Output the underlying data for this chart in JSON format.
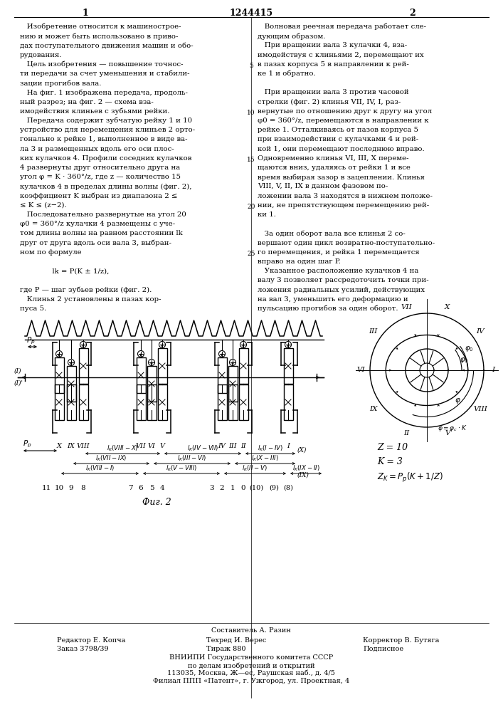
{
  "patent_number": "1244415",
  "page_left": "1",
  "page_right": "2",
  "bg_color": "#ffffff",
  "col1_text": [
    "   Изобретение относится к машинострое-",
    "нию и может быть использовано в приво-",
    "дах поступательного движения машин и обо-",
    "рудования.",
    "   Цель изобретения — повышение точнос-",
    "ти передачи за счет уменьшения и стабили-",
    "зации прогибов вала.",
    "   На фиг. 1 изображена передача, продоль-",
    "ный разрез; на фиг. 2 — схема вза-",
    "имодействия клиньев с зубьями рейки.",
    "   Передача содержит зубчатую рейку 1 и 10",
    "устройство для перемещения клиньев 2 орто-",
    "гонально к рейке 1, выполненное в виде ва-",
    "ла 3 и размещенных вдоль его оси плос-",
    "ких кулачков 4. Профили соседних кулачков",
    "4 развернуты друг относительно друга на",
    "угол φ = K · 360°/z, где z — количество 15",
    "кулачков 4 в пределах длины волны (фиг. 2),",
    "коэффициент K выбран из диапазона 2 ≤",
    "≤ K ≤ (z−2).",
    "   Последовательно развернутые на угол 20",
    "φ0 = 360°/z кулачки 4 размещены с уче-",
    "том длины волны на равном расстоянии lk",
    "друг от друга вдоль оси вала 3, выбран-",
    "ном по формуле",
    "",
    "              lk = P(K ± 1/z),",
    "",
    "где P — шаг зубьев рейки (фиг. 2).",
    "   Клинья 2 установлены в пазах кор-",
    "пуса 5."
  ],
  "col2_text": [
    "   Волновая реечная передача работает сле-",
    "дующим образом.",
    "   При вращении вала 3 кулачки 4, вза-",
    "имодействуя с клиньями 2, перемещают их",
    "в пазах корпуса 5 в направлении к рей-",
    "ке 1 и обратно.",
    "",
    "   При вращении вала 3 против часовой",
    "стрелки (фиг. 2) клинья VII, IV, I, раз-",
    "вернутые по отношению друг к другу на угол",
    "φ0 = 360°/z, перемещаются в направлении к",
    "рейке 1. Отталкиваясь от пазов корпуса 5",
    "при взаимодействии с кулачками 4 и рей-",
    "кой 1, они перемещают последнюю вправо.",
    "Одновременно клинья VI, III, X переме-",
    "щаются вниз, удаляясь от рейки 1 и все",
    "время выбирая зазор в зацеплении. Клинья",
    "VIII, V, II, IX в данном фазовом по-",
    "ложении вала 3 находятся в нижнем положе-",
    "нии, не препятствующем перемещению рей-",
    "ки 1.",
    "",
    "   За один оборот вала все клинья 2 со-",
    "вершают один цикл возвратно-поступательно-",
    "го перемещения, и рейка 1 перемещается",
    "вправо на один шаг P.",
    "   Указанное расположение кулачков 4 на",
    "валу 3 позволяет рассредоточить точки при-",
    "ложения радиальных усилий, действующих",
    "на вал 3, уменьшить его деформацию и",
    "пульсацию прогибов за один оборот."
  ],
  "footer_line1": "Составитель А. Разин",
  "footer_line2_left": "Редактор Е. Копча",
  "footer_line2_mid": "Техред И. Верес",
  "footer_line2_right": "Корректор В. Бутяга",
  "footer_line3_left": "Заказ 3798/39",
  "footer_line3_mid": "Тираж 880",
  "footer_line3_right": "Подписное",
  "footer_vnipi": "ВНИИПИ Государственного комитета СССР",
  "footer_vnipi2": "по делам изобретений и открытий",
  "footer_addr": "113035, Москва, Ж—ес, Раушская наб., д. 4/5",
  "footer_filial": "Филиал ППП «Патент», г. Ужгород, ул. Проектная, 4",
  "fig2_caption": "Фиг. 2"
}
